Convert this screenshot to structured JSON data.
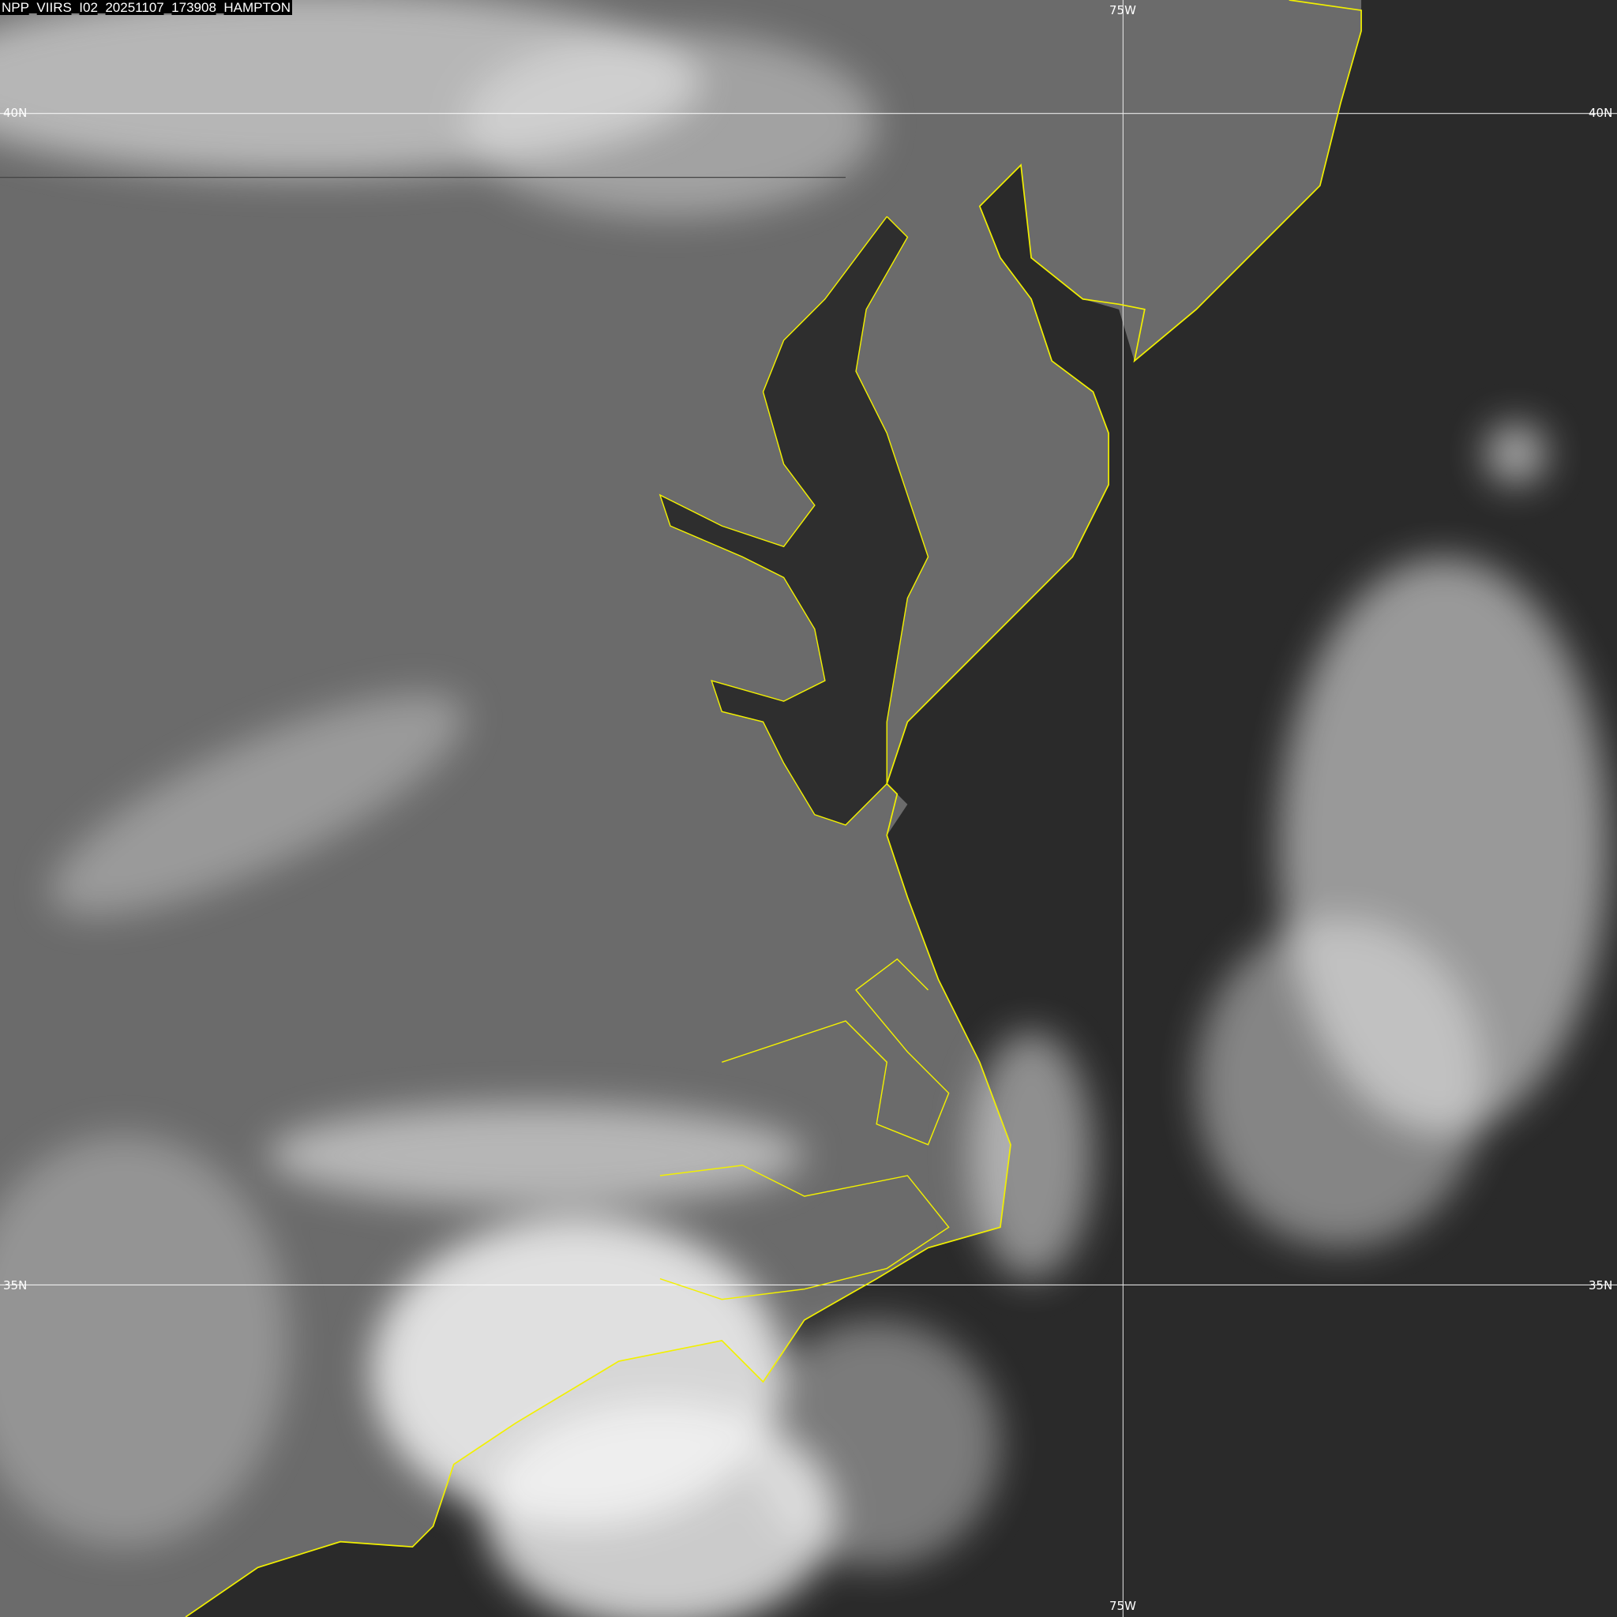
{
  "image_label": "NPP_VIIRS_I02_20251107_173908_HAMPTON",
  "grid": {
    "longitudes": [
      {
        "label": "75W"
      }
    ],
    "latitudes": [
      {
        "label": "40N"
      },
      {
        "label": "35N"
      }
    ]
  },
  "colors": {
    "coastline": "#f2f000",
    "grid": "#ffffff",
    "ocean": "#2a2a2a",
    "land": "#6b6b6b",
    "cloud": "#f4f4f4"
  },
  "imagery": "grayscale visible satellite band"
}
